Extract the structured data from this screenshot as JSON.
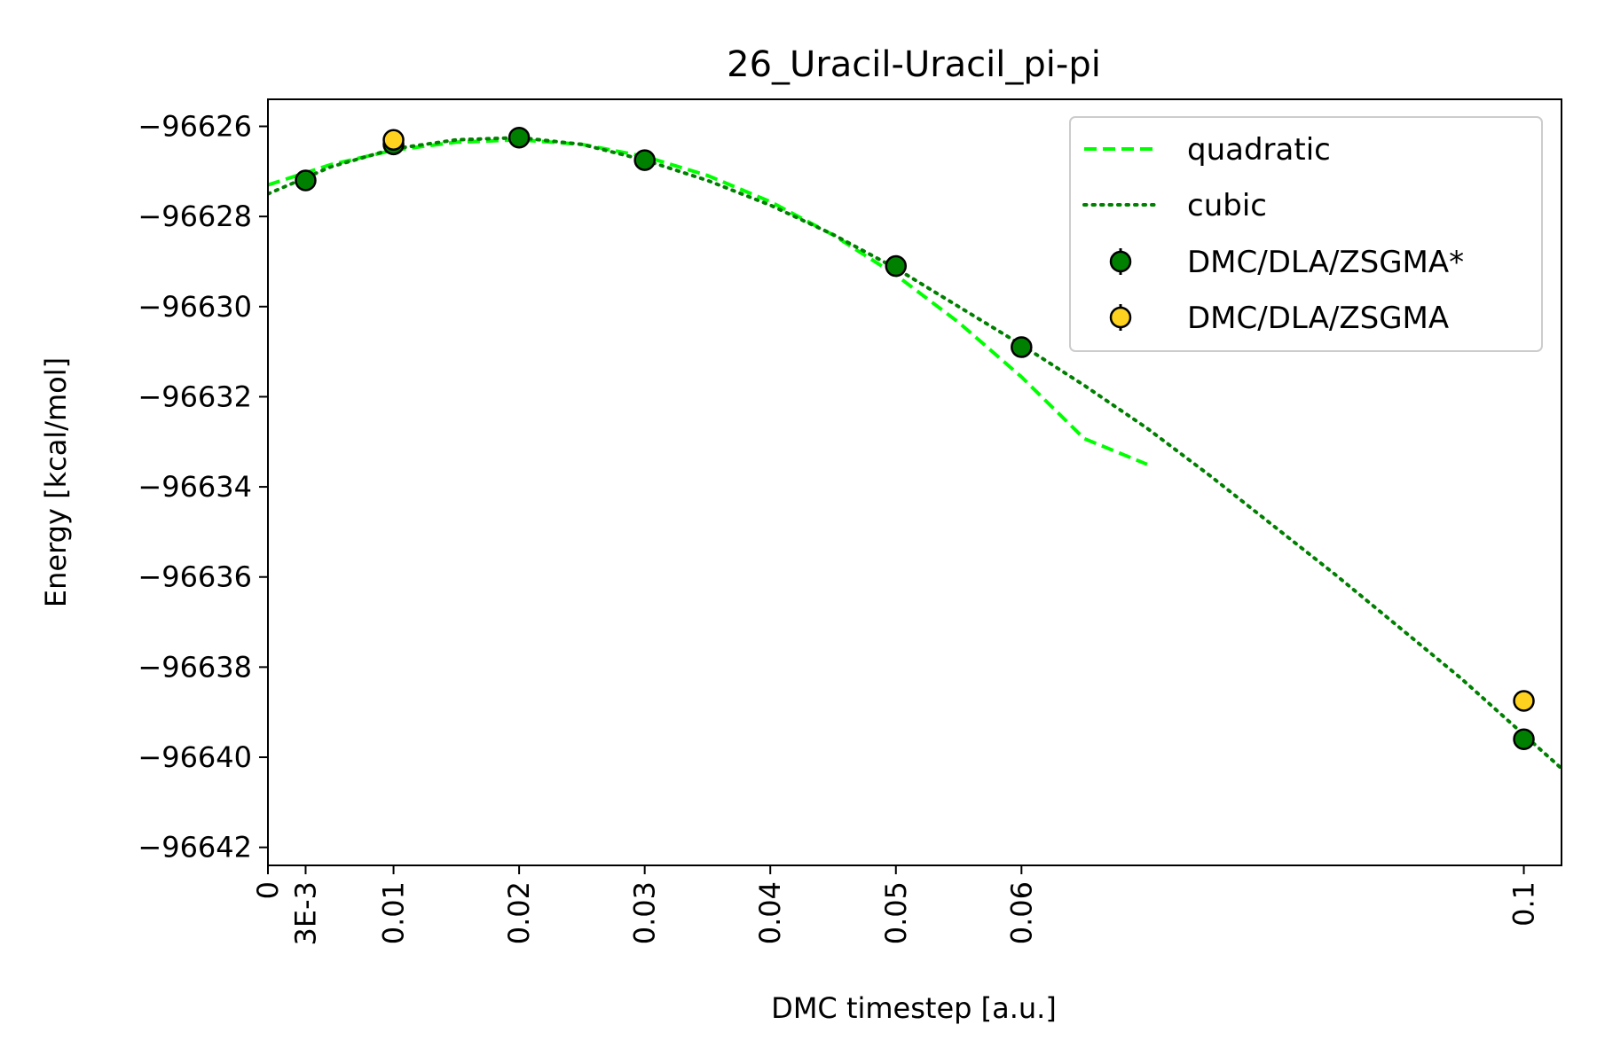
{
  "chart_data": {
    "type": "scatter",
    "title": "26_Uracil-Uracil_pi-pi",
    "xlabel": "DMC timestep [a.u.]",
    "ylabel": "Energy [kcal/mol]",
    "xlim": [
      0,
      0.103
    ],
    "ylim": [
      -96642.4,
      -96625.4
    ],
    "xticks": [
      {
        "value": 0,
        "label": "0"
      },
      {
        "value": 0.003,
        "label": "3E-3"
      },
      {
        "value": 0.01,
        "label": "0.01"
      },
      {
        "value": 0.02,
        "label": "0.02"
      },
      {
        "value": 0.03,
        "label": "0.03"
      },
      {
        "value": 0.04,
        "label": "0.04"
      },
      {
        "value": 0.05,
        "label": "0.05"
      },
      {
        "value": 0.06,
        "label": "0.06"
      },
      {
        "value": 0.1,
        "label": "0.1"
      }
    ],
    "yticks": [
      {
        "value": -96626,
        "label": "−96626"
      },
      {
        "value": -96628,
        "label": "−96628"
      },
      {
        "value": -96630,
        "label": "−96630"
      },
      {
        "value": -96632,
        "label": "−96632"
      },
      {
        "value": -96634,
        "label": "−96634"
      },
      {
        "value": -96636,
        "label": "−96636"
      },
      {
        "value": -96638,
        "label": "−96638"
      },
      {
        "value": -96640,
        "label": "−96640"
      },
      {
        "value": -96642,
        "label": "−96642"
      }
    ],
    "grid": false,
    "legend_position": "top-right",
    "series": [
      {
        "name": "quadratic",
        "kind": "line",
        "style": "dashed",
        "color": "#00ff00",
        "x": [
          0,
          0.005,
          0.01,
          0.015,
          0.02,
          0.025,
          0.03,
          0.035,
          0.04,
          0.045,
          0.05,
          0.055,
          0.06,
          0.065,
          0.07
        ],
        "y": [
          -96627.3,
          -96626.85,
          -96626.53,
          -96626.35,
          -96626.3,
          -96626.4,
          -96626.67,
          -96627.09,
          -96627.67,
          -96628.41,
          -96629.3,
          -96630.35,
          -96631.56,
          -96632.93,
          -96633.5
        ]
      },
      {
        "name": "cubic",
        "kind": "line",
        "style": "dotted",
        "color": "#008000",
        "x": [
          0,
          0.005,
          0.01,
          0.015,
          0.02,
          0.025,
          0.03,
          0.035,
          0.04,
          0.045,
          0.05,
          0.055,
          0.06,
          0.065,
          0.07,
          0.075,
          0.08,
          0.085,
          0.09,
          0.095,
          0.1,
          0.103
        ],
        "y": [
          -96627.5,
          -96626.9,
          -96626.5,
          -96626.3,
          -96626.25,
          -96626.4,
          -96626.75,
          -96627.2,
          -96627.75,
          -96628.4,
          -96629.15,
          -96630.0,
          -96630.85,
          -96631.75,
          -96632.7,
          -96633.75,
          -96634.85,
          -96635.95,
          -96637.1,
          -96638.25,
          -96639.5,
          -96640.25
        ]
      },
      {
        "name": "DMC/DLA/ZSGMA*",
        "kind": "points",
        "color": "#008000",
        "x": [
          0.003,
          0.01,
          0.02,
          0.03,
          0.05,
          0.06,
          0.1
        ],
        "y": [
          -96627.2,
          -96626.4,
          -96626.25,
          -96626.75,
          -96629.1,
          -96630.9,
          -96639.6
        ]
      },
      {
        "name": "DMC/DLA/ZSGMA",
        "kind": "points",
        "color": "#ffd21f",
        "x": [
          0.01,
          0.1
        ],
        "y": [
          -96626.3,
          -96638.75
        ]
      }
    ]
  }
}
